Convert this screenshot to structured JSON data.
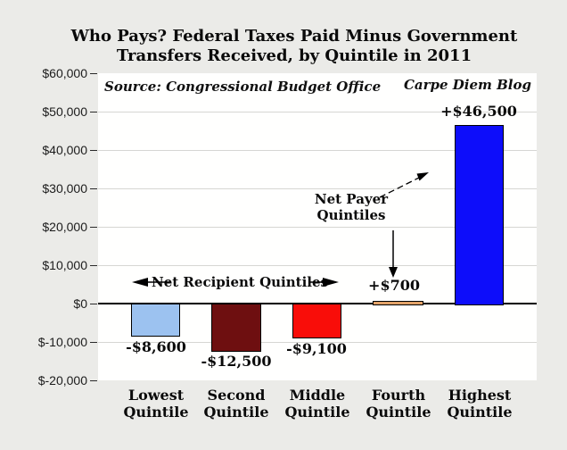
{
  "title": {
    "line1": "Who Pays? Federal Taxes Paid Minus Government",
    "line2": "Transfers Received, by Quintile in 2011"
  },
  "source_note": "Source: Congressional Budget Office",
  "credit": "Carpe Diem Blog",
  "chart_data": {
    "type": "bar",
    "title": "Who Pays? Federal Taxes Paid Minus Government Transfers Received, by Quintile in 2011",
    "categories": [
      "Lowest\nQuintile",
      "Second\nQuintile",
      "Middle\nQuintile",
      "Fourth\nQuintile",
      "Highest\nQuintile"
    ],
    "values": [
      -8600,
      -12500,
      -9100,
      700,
      46500
    ],
    "value_labels": [
      "-$8,600",
      "-$12,500",
      "-$9,100",
      "+$700",
      "+$46,500"
    ],
    "bar_colors": [
      "#9cc2f0",
      "#6e0f10",
      "#f90d09",
      "#e2a268",
      "#0d0dfa"
    ],
    "ylabel": "",
    "xlabel": "",
    "ylim": [
      -20000,
      60000
    ],
    "ytick_step": 10000,
    "ytick_labels": [
      "$60,000",
      "$50,000",
      "$40,000",
      "$30,000",
      "$20,000",
      "$10,000",
      "$0",
      "$-10,000",
      "$-20,000"
    ],
    "grid": true,
    "legend": false,
    "annotations": {
      "net_recipient": "Net Recipient Quintiles",
      "net_payer": "Net Payer\nQuintiles"
    }
  }
}
